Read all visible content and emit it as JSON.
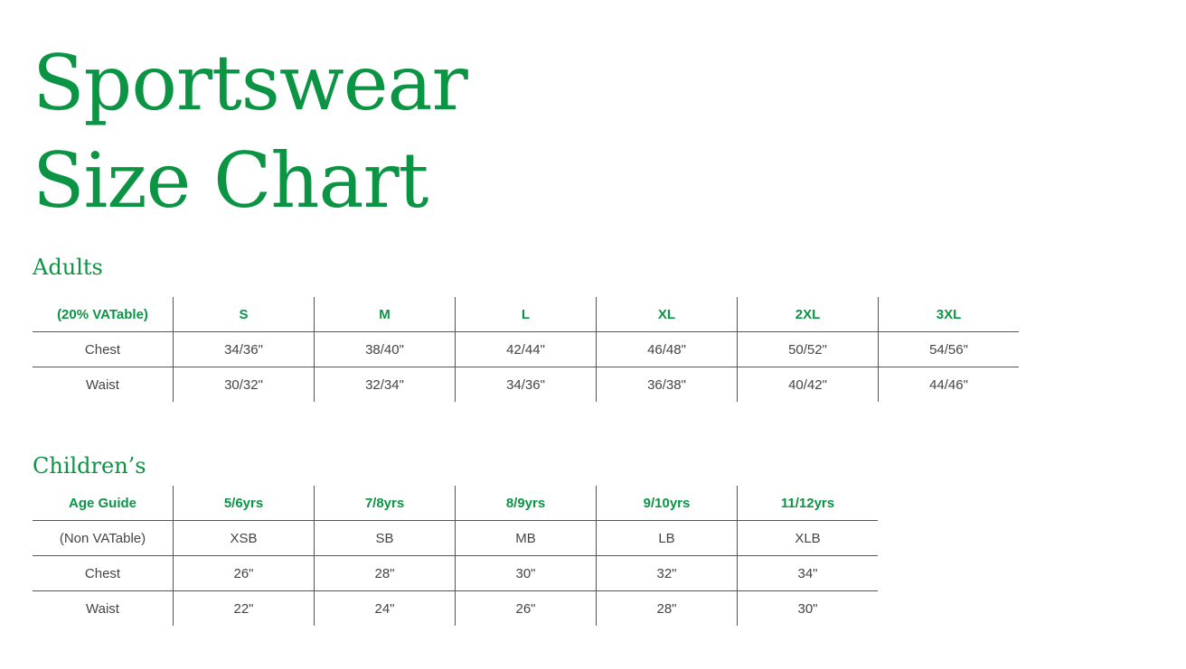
{
  "title_line1": "Sportswear",
  "title_line2": "Size Chart",
  "accent_color": "#0b9444",
  "adults": {
    "heading": "Adults",
    "header": [
      "(20% VATable)",
      "S",
      "M",
      "L",
      "XL",
      "2XL",
      "3XL"
    ],
    "rows": [
      [
        "Chest",
        "34/36\"",
        "38/40\"",
        "42/44\"",
        "46/48\"",
        "50/52\"",
        "54/56\""
      ],
      [
        "Waist",
        "30/32\"",
        "32/34\"",
        "34/36\"",
        "36/38\"",
        "40/42\"",
        "44/46\""
      ]
    ]
  },
  "children": {
    "heading": "Children’s",
    "header": [
      "Age Guide",
      "5/6yrs",
      "7/8yrs",
      "8/9yrs",
      "9/10yrs",
      "11/12yrs"
    ],
    "rows": [
      [
        "(Non VATable)",
        "XSB",
        "SB",
        "MB",
        "LB",
        "XLB"
      ],
      [
        "Chest",
        "26\"",
        "28\"",
        "30\"",
        "32\"",
        "34\""
      ],
      [
        "Waist",
        "22\"",
        "24\"",
        "26\"",
        "28\"",
        "30\""
      ]
    ]
  }
}
